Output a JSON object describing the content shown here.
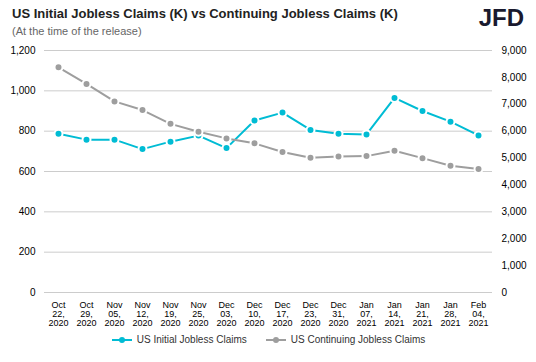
{
  "chart_data": {
    "type": "line",
    "title": "US Initial Jobless Claims (K) vs Continuing Jobless Claims (K)",
    "subtitle": "(At the time of the release)",
    "annotations": [
      {
        "text": "JFD",
        "color": "#1a1a2e"
      }
    ],
    "categories": [
      "Oct\n22,\n2020",
      "Oct\n29,\n2020",
      "Nov\n05,\n2020",
      "Nov\n12,\n2020",
      "Nov\n19,\n2020",
      "Nov\n25,\n2020",
      "Dec\n03,\n2020",
      "Dec\n10,\n2020",
      "Dec\n17,\n2020",
      "Dec\n23,\n2020",
      "Dec\n31,\n2020",
      "Jan\n07,\n2021",
      "Jan\n14,\n2021",
      "Jan\n21,\n2021",
      "Jan\n28,\n2021",
      "Feb\n04,\n2021"
    ],
    "series": [
      {
        "name": "US Initial Jobless Claims",
        "color": "#00bcd4",
        "marker": "circle",
        "values": [
          787,
          758,
          758,
          711,
          748,
          778,
          716,
          853,
          892,
          806,
          787,
          784,
          965,
          900,
          847,
          779
        ]
      },
      {
        "name": "US Continuing Jobless Claims",
        "color": "#9e9e9e",
        "marker": "circle",
        "axis": "y2",
        "values": [
          8373,
          7756,
          7107,
          6786,
          6272,
          5979,
          5731,
          5547,
          5228,
          5008,
          5062,
          5072,
          5273,
          4997,
          4716,
          4592
        ]
      }
    ],
    "ylim": [
      0,
      1200
    ],
    "yticks": [
      0,
      200,
      400,
      600,
      800,
      {
        "value": 1000,
        "label": "1,000"
      },
      {
        "value": 1200,
        "label": "1,200"
      }
    ],
    "y2lim": [
      0,
      9000
    ],
    "y2ticks": [
      0,
      {
        "value": 1000,
        "label": "1,000"
      },
      {
        "value": 2000,
        "label": "2,000"
      },
      {
        "value": 3000,
        "label": "3,000"
      },
      {
        "value": 4000,
        "label": "4,000"
      },
      {
        "value": 5000,
        "label": "5,000"
      },
      {
        "value": 6000,
        "label": "6,000"
      },
      {
        "value": 7000,
        "label": "7,000"
      },
      {
        "value": 8000,
        "label": "8,000"
      },
      {
        "value": 9000,
        "label": "9,000"
      }
    ],
    "grid": true,
    "legend": "bottom"
  }
}
